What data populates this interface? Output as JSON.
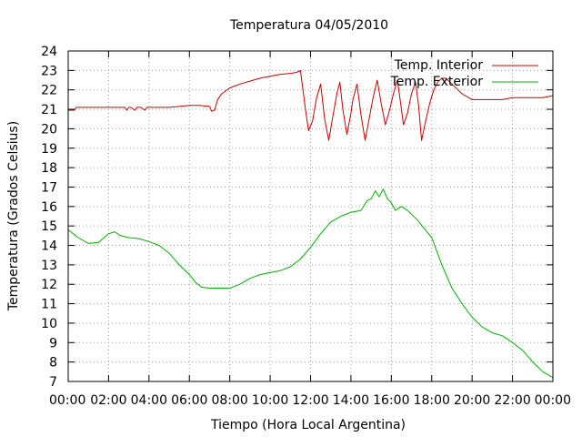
{
  "chart_data": {
    "type": "line",
    "title": "Temperatura 04/05/2010",
    "xlabel": "Tiempo (Hora Local Argentina)",
    "ylabel": "Temperatura (Grados Celsius)",
    "xlim": [
      0,
      24
    ],
    "ylim": [
      7,
      24
    ],
    "grid": true,
    "legend_position": "top-right",
    "x_ticks": [
      0,
      2,
      4,
      6,
      8,
      10,
      12,
      14,
      16,
      18,
      20,
      22,
      24
    ],
    "x_tick_labels": [
      "00:00",
      "02:00",
      "04:00",
      "06:00",
      "08:00",
      "10:00",
      "12:00",
      "14:00",
      "16:00",
      "18:00",
      "20:00",
      "22:00",
      "00:00"
    ],
    "y_ticks": [
      7,
      8,
      9,
      10,
      11,
      12,
      13,
      14,
      15,
      16,
      17,
      18,
      19,
      20,
      21,
      22,
      23,
      24
    ],
    "y_tick_labels": [
      "7",
      "8",
      "9",
      "10",
      "11",
      "12",
      "13",
      "14",
      "15",
      "16",
      "17",
      "18",
      "19",
      "20",
      "21",
      "22",
      "23",
      "24"
    ],
    "series": [
      {
        "name": "Temp. Interior",
        "color": "#cc0000",
        "x": [
          0,
          0.3,
          0.4,
          1.0,
          2.0,
          2.8,
          2.9,
          3.0,
          3.1,
          3.3,
          3.4,
          3.6,
          3.8,
          3.9,
          4.0,
          4.2,
          5.0,
          5.5,
          6.0,
          6.5,
          7.0,
          7.1,
          7.25,
          7.4,
          7.6,
          8.0,
          8.5,
          9.0,
          9.5,
          10.0,
          10.5,
          11.0,
          11.3,
          11.5,
          11.75,
          11.9,
          12.1,
          12.3,
          12.5,
          12.7,
          12.9,
          13.1,
          13.3,
          13.45,
          13.6,
          13.8,
          14.0,
          14.1,
          14.3,
          14.5,
          14.7,
          14.9,
          15.1,
          15.3,
          15.5,
          15.7,
          15.9,
          16.1,
          16.3,
          16.45,
          16.6,
          16.8,
          17.0,
          17.2,
          17.35,
          17.5,
          17.7,
          17.9,
          18.1,
          18.3,
          18.5,
          18.7,
          19.0,
          19.5,
          20.0,
          20.5,
          21.0,
          21.5,
          22.0,
          22.5,
          23.0,
          23.5,
          24.0
        ],
        "values": [
          20.95,
          20.95,
          21.1,
          21.1,
          21.1,
          21.1,
          20.95,
          21.1,
          21.1,
          20.95,
          21.1,
          21.1,
          20.95,
          21.1,
          21.1,
          21.1,
          21.1,
          21.15,
          21.2,
          21.2,
          21.15,
          20.9,
          20.95,
          21.5,
          21.8,
          22.1,
          22.3,
          22.45,
          22.6,
          22.7,
          22.8,
          22.85,
          22.9,
          23.0,
          21.0,
          19.9,
          20.4,
          21.6,
          22.3,
          20.5,
          19.4,
          20.6,
          21.8,
          22.4,
          21.0,
          19.7,
          20.8,
          21.5,
          22.3,
          20.7,
          19.4,
          20.5,
          21.6,
          22.5,
          21.3,
          20.2,
          20.9,
          21.8,
          22.5,
          21.4,
          20.2,
          20.8,
          21.8,
          22.4,
          21.2,
          19.4,
          20.4,
          21.3,
          22.0,
          22.4,
          22.6,
          22.6,
          22.3,
          21.8,
          21.5,
          21.5,
          21.5,
          21.5,
          21.6,
          21.6,
          21.6,
          21.6,
          21.7
        ]
      },
      {
        "name": "Temp. Exterior",
        "color": "#00b000",
        "x": [
          0,
          0.5,
          1.0,
          1.5,
          2.0,
          2.3,
          2.6,
          3.0,
          3.5,
          4.0,
          4.5,
          5.0,
          5.5,
          6.0,
          6.3,
          6.6,
          7.0,
          7.5,
          8.0,
          8.5,
          9.0,
          9.5,
          10.0,
          10.5,
          11.0,
          11.5,
          12.0,
          12.5,
          13.0,
          13.5,
          14.0,
          14.5,
          14.8,
          15.0,
          15.2,
          15.4,
          15.6,
          15.8,
          16.0,
          16.2,
          16.5,
          16.8,
          17.0,
          17.3,
          17.6,
          18.0,
          18.5,
          19.0,
          19.5,
          20.0,
          20.5,
          21.0,
          21.5,
          22.0,
          22.5,
          23.0,
          23.5,
          24.0
        ],
        "values": [
          14.8,
          14.4,
          14.1,
          14.15,
          14.6,
          14.7,
          14.5,
          14.4,
          14.35,
          14.2,
          14.0,
          13.6,
          13.0,
          12.5,
          12.1,
          11.85,
          11.8,
          11.8,
          11.8,
          12.0,
          12.3,
          12.5,
          12.6,
          12.7,
          12.9,
          13.3,
          13.9,
          14.6,
          15.2,
          15.5,
          15.7,
          15.8,
          16.3,
          16.4,
          16.8,
          16.5,
          16.9,
          16.4,
          16.2,
          15.8,
          16.0,
          15.8,
          15.6,
          15.3,
          14.9,
          14.4,
          13.0,
          11.8,
          11.0,
          10.3,
          9.8,
          9.5,
          9.35,
          9.0,
          8.6,
          8.0,
          7.5,
          7.2
        ]
      }
    ]
  }
}
